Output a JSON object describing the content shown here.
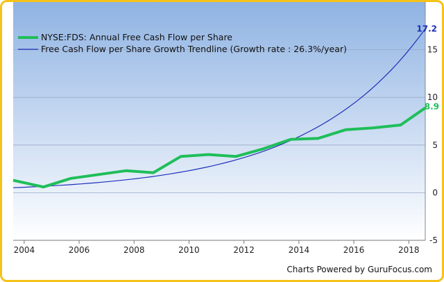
{
  "chart_data": {
    "type": "line",
    "x_ticks": [
      "2004",
      "2006",
      "2008",
      "2010",
      "2012",
      "2014",
      "2016",
      "2018"
    ],
    "y_ticks": [
      "-5",
      "0",
      "5",
      "10",
      "15"
    ],
    "ylim": [
      -5,
      20
    ],
    "xlim": [
      2003.6,
      2018.6
    ],
    "grid": true,
    "legend_position": "top-left",
    "series": [
      {
        "name": "NYSE:FDS: Annual Free Cash Flow per Share",
        "color": "#1fbe5a",
        "end_label": "8.9",
        "x": [
          2003.6,
          2004.7,
          2005.7,
          2006.7,
          2007.7,
          2008.7,
          2009.7,
          2010.7,
          2011.7,
          2012.7,
          2013.7,
          2014.7,
          2015.7,
          2016.7,
          2017.7,
          2018.6
        ],
        "y": [
          1.3,
          0.6,
          1.5,
          1.9,
          2.3,
          2.1,
          3.8,
          4.0,
          3.8,
          4.6,
          5.6,
          5.7,
          6.6,
          6.8,
          7.1,
          8.9
        ]
      },
      {
        "name": "Free Cash Flow per Share Growth Trendline (Growth rate : 26.3%/year)",
        "color": "#1e2fb8",
        "end_label": "17.2",
        "trend": {
          "end_x": 2018.6,
          "end_y": 17.2,
          "rate": 0.263,
          "start_x": 2003.6
        }
      }
    ]
  },
  "credit": "Charts Powered by GuruFocus.com"
}
